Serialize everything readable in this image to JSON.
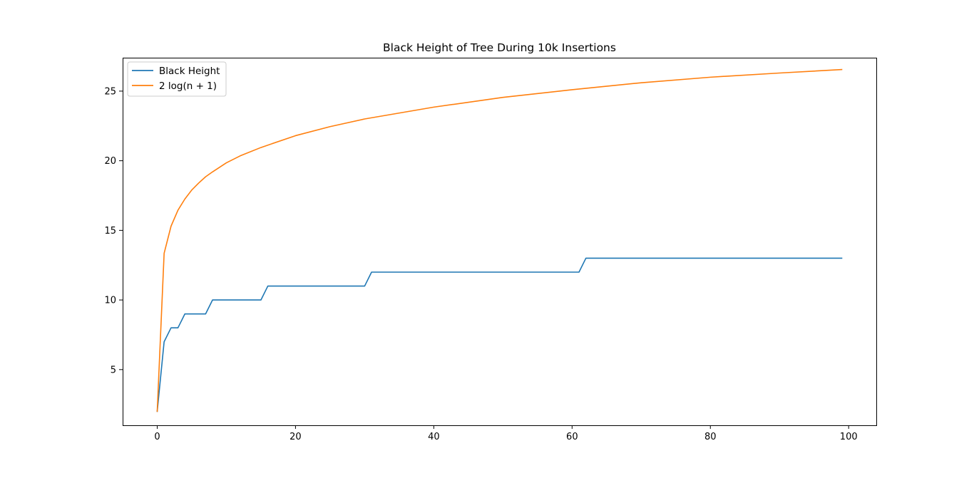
{
  "chart_data": {
    "type": "line",
    "title": "Black Height of Tree During 10k Insertions",
    "xlabel": "",
    "ylabel": "",
    "xlim": [
      -5,
      104
    ],
    "ylim": [
      1.0,
      27.4
    ],
    "xticks": [
      0,
      20,
      40,
      60,
      80,
      100
    ],
    "yticks": [
      5,
      10,
      15,
      20,
      25
    ],
    "grid": false,
    "legend_position": "upper-left",
    "series": [
      {
        "name": "Black Height",
        "color": "#1f77b4",
        "x": [
          0,
          1,
          2,
          3,
          4,
          7,
          8,
          15,
          16,
          30,
          31,
          61,
          62,
          99
        ],
        "y": [
          2,
          7,
          8,
          8,
          9,
          9,
          10,
          10,
          11,
          11,
          12,
          12,
          13,
          13
        ]
      },
      {
        "name": "2 log(n + 1)",
        "color": "#ff7f0e",
        "x": [
          0,
          1,
          2,
          3,
          4,
          5,
          6,
          7,
          8,
          10,
          12,
          15,
          20,
          25,
          30,
          40,
          50,
          60,
          70,
          80,
          90,
          99
        ],
        "y": [
          2.0,
          13.35,
          15.3,
          16.45,
          17.25,
          17.9,
          18.4,
          18.85,
          19.2,
          19.85,
          20.35,
          20.95,
          21.8,
          22.45,
          23.0,
          23.85,
          24.55,
          25.1,
          25.6,
          26.0,
          26.3,
          26.55
        ]
      }
    ]
  }
}
